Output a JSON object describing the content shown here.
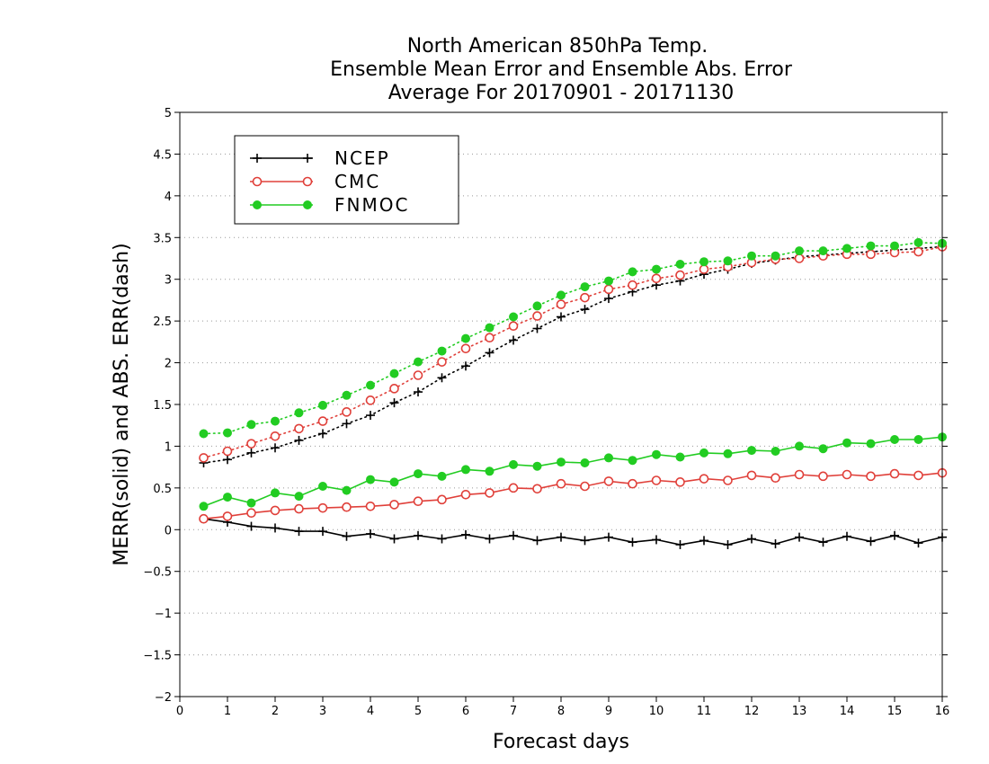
{
  "chart_data": {
    "type": "line",
    "title_lines": [
      "North American 850hPa Temp.",
      "Ensemble Mean Error and Ensemble Abs. Error",
      "Average For 20170901 - 20171130"
    ],
    "xlabel": "Forecast days",
    "ylabel": "MERR(solid) and ABS. ERR(dash)",
    "xlim": [
      0,
      16
    ],
    "ylim": [
      -2,
      5
    ],
    "x_ticks": [
      "0",
      "1",
      "2",
      "3",
      "4",
      "5",
      "6",
      "7",
      "8",
      "9",
      "10",
      "11",
      "12",
      "13",
      "14",
      "15",
      "16"
    ],
    "y_ticks": [
      "−2",
      "−1.5",
      "−1",
      "−0.5",
      "0",
      "0.5",
      "1",
      "1.5",
      "2",
      "2.5",
      "3",
      "3.5",
      "4",
      "4.5",
      "5"
    ],
    "grid": "horizontal dotted",
    "legend_position": "top-left",
    "x": [
      0.5,
      1,
      1.5,
      2,
      2.5,
      3,
      3.5,
      4,
      4.5,
      5,
      5.5,
      6,
      6.5,
      7,
      7.5,
      8,
      8.5,
      9,
      9.5,
      10,
      10.5,
      11,
      11.5,
      12,
      12.5,
      13,
      13.5,
      14,
      14.5,
      15,
      15.5,
      16
    ],
    "series": [
      {
        "name": "NCEP",
        "color": "#000000",
        "marker": "plus",
        "merr": [
          0.13,
          0.09,
          0.04,
          0.02,
          -0.02,
          -0.02,
          -0.08,
          -0.05,
          -0.11,
          -0.07,
          -0.11,
          -0.06,
          -0.11,
          -0.07,
          -0.13,
          -0.09,
          -0.13,
          -0.09,
          -0.15,
          -0.12,
          -0.18,
          -0.13,
          -0.18,
          -0.11,
          -0.17,
          -0.09,
          -0.15,
          -0.08,
          -0.14,
          -0.07,
          -0.16,
          -0.09
        ],
        "abs_err": [
          0.8,
          0.84,
          0.92,
          0.98,
          1.07,
          1.15,
          1.27,
          1.37,
          1.52,
          1.65,
          1.82,
          1.96,
          2.12,
          2.27,
          2.41,
          2.55,
          2.64,
          2.77,
          2.85,
          2.93,
          2.98,
          3.06,
          3.12,
          3.19,
          3.23,
          3.27,
          3.29,
          3.31,
          3.33,
          3.35,
          3.37,
          3.39
        ]
      },
      {
        "name": "CMC",
        "color": "#e0403a",
        "marker": "open-circle",
        "merr": [
          0.13,
          0.16,
          0.2,
          0.23,
          0.25,
          0.26,
          0.27,
          0.28,
          0.3,
          0.34,
          0.36,
          0.42,
          0.44,
          0.5,
          0.49,
          0.55,
          0.52,
          0.58,
          0.55,
          0.59,
          0.57,
          0.61,
          0.59,
          0.65,
          0.62,
          0.66,
          0.64,
          0.66,
          0.64,
          0.67,
          0.65,
          0.68
        ],
        "abs_err": [
          0.86,
          0.94,
          1.03,
          1.12,
          1.21,
          1.3,
          1.41,
          1.55,
          1.69,
          1.85,
          2.01,
          2.17,
          2.3,
          2.44,
          2.56,
          2.7,
          2.78,
          2.88,
          2.93,
          3.01,
          3.05,
          3.12,
          3.15,
          3.2,
          3.24,
          3.25,
          3.28,
          3.3,
          3.3,
          3.32,
          3.33,
          3.39
        ]
      },
      {
        "name": "FNMOC",
        "color": "#22cc22",
        "marker": "filled-circle",
        "merr": [
          0.28,
          0.39,
          0.32,
          0.44,
          0.4,
          0.52,
          0.47,
          0.6,
          0.57,
          0.67,
          0.64,
          0.72,
          0.7,
          0.78,
          0.76,
          0.81,
          0.8,
          0.86,
          0.83,
          0.9,
          0.87,
          0.92,
          0.91,
          0.95,
          0.94,
          1.0,
          0.97,
          1.04,
          1.03,
          1.08,
          1.08,
          1.11
        ],
        "abs_err": [
          1.15,
          1.16,
          1.26,
          1.3,
          1.4,
          1.49,
          1.61,
          1.73,
          1.87,
          2.01,
          2.14,
          2.29,
          2.42,
          2.55,
          2.68,
          2.81,
          2.91,
          2.98,
          3.09,
          3.12,
          3.18,
          3.21,
          3.22,
          3.28,
          3.28,
          3.34,
          3.34,
          3.37,
          3.4,
          3.4,
          3.44,
          3.43
        ]
      }
    ]
  }
}
